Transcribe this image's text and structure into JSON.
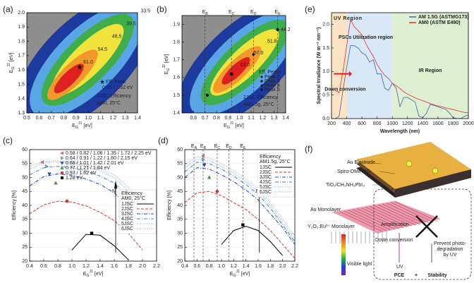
{
  "chart_data": [
    {
      "type": "contour",
      "panel": "(a)",
      "xlabel": {
        "base": "E",
        "sub": "G",
        "sup": "J1",
        "unit": " [eV]"
      },
      "ylabel": {
        "base": "E",
        "sub": "G",
        "sup": "J2",
        "unit": " [eV]"
      },
      "xlim": [
        0.5,
        1.4
      ],
      "xticks": [
        0.5,
        0.6,
        0.7,
        0.8,
        0.9,
        {
          "value": 1,
          "label": "1.0"
        },
        1.1,
        1.2,
        1.3,
        1.4
      ],
      "ylim": [
        1.3,
        2.0
      ],
      "yticks": [
        1.3,
        1.4,
        1.5,
        1.6,
        1.7,
        1.8,
        1.9,
        {
          "value": 2,
          "label": "2.0"
        }
      ],
      "contour_labels": [
        "61.0",
        "54.5",
        "48.5",
        "39.5",
        "33.5"
      ],
      "peaks": [
        {
          "name": "Eff. Peak",
          "marker": "star",
          "x": 0.93,
          "y": 1.62
        }
      ],
      "peak_label": "0.93 / 1.62 eV",
      "annotations": [
        "2JSC Efficiency",
        "AM0, 25°C"
      ]
    },
    {
      "type": "contour",
      "panel": "(b)",
      "xlabel": {
        "base": "E",
        "sub": "G",
        "sup": "J1",
        "unit": " [eV]"
      },
      "ylabel": {
        "base": "E",
        "sub": "G",
        "sup": "J2",
        "unit": " [eV]"
      },
      "xlim": [
        0.5,
        1.4
      ],
      "xticks": [
        0.6,
        0.7,
        0.8,
        0.9,
        {
          "value": 1,
          "label": "1.0"
        },
        1.1,
        1.2,
        1.3,
        1.4
      ],
      "ylim": [
        1.4,
        1.95
      ],
      "yticks": [
        1.4,
        1.5,
        1.6,
        1.7,
        1.8,
        1.9
      ],
      "contour_labels": [
        "63.0",
        "57.0",
        "51.8",
        "44.2"
      ],
      "vlines": [
        {
          "label": {
            "base": "E",
            "sub": "B"
          },
          "x": 0.7
        },
        {
          "label": {
            "base": "E",
            "sub": "C"
          },
          "x": 0.93
        },
        {
          "label": {
            "base": "E",
            "sub": "D"
          },
          "x": 1.12
        },
        {
          "label": {
            "base": "E",
            "sub": "E"
          },
          "x": 1.33
        }
      ],
      "legend_title": "Eff. Peaks",
      "peaks": [
        {
          "name": "Peak 2",
          "marker": "circle",
          "x": 0.72,
          "y": 1.5
        },
        {
          "name": "Peak 3",
          "marker": "square",
          "x": 0.93,
          "y": 1.62
        },
        {
          "name": "Peak 4",
          "marker": "diamond",
          "x": 1.12,
          "y": 1.73
        },
        {
          "name": "Peak 5",
          "marker": "circle",
          "x": 1.33,
          "y": 1.87
        }
      ],
      "annotations": [
        "2JSC Efficiency",
        "AM1.5g, 25°C"
      ]
    },
    {
      "type": "line",
      "panel": "(c)",
      "xlabel": {
        "base": "E",
        "sub": "G",
        "sup": "J1",
        "unit": " [eV]"
      },
      "ylabel": "Efficiency [%]",
      "xlim": [
        0.4,
        2.2
      ],
      "xticks": [
        0.4,
        0.6,
        0.8,
        {
          "value": 1,
          "label": "1.0"
        },
        1.2,
        1.4,
        1.6,
        1.8,
        {
          "value": 2,
          "label": "2.0"
        },
        2.2
      ],
      "ylim": [
        20,
        60
      ],
      "yticks": [
        20,
        25,
        30,
        35,
        40,
        45,
        50,
        55,
        60
      ],
      "x": [
        0.4,
        0.6,
        0.8,
        1.0,
        1.2,
        1.4,
        1.6,
        1.8,
        2.0,
        2.2
      ],
      "series": [
        {
          "name": "1JSC",
          "color": "#000000",
          "linestyle": "solid",
          "values": [
            null,
            null,
            null,
            24,
            29.6,
            29.3,
            25.5,
            20.5,
            null,
            null
          ]
        },
        {
          "name": "2JSC",
          "color": "#e03030",
          "linestyle": "dashed",
          "values": [
            37,
            40.2,
            41.5,
            41.2,
            39.8,
            37.5,
            34.5,
            30,
            24,
            null
          ]
        },
        {
          "name": "3JSC",
          "color": "#2040c0",
          "linestyle": "dashdot",
          "values": [
            47,
            50.3,
            51.3,
            50.8,
            49.5,
            47.5,
            44.5,
            39.5,
            33,
            null
          ]
        },
        {
          "name": "4JSC",
          "color": "#4a7fb8",
          "linestyle": "dashdot",
          "values": [
            51,
            53.5,
            54,
            53.5,
            52.3,
            50.5,
            48,
            43,
            36,
            null
          ]
        },
        {
          "name": "5JSC",
          "color": "#7aaee0",
          "linestyle": "dotted",
          "values": [
            53,
            55.3,
            55.6,
            55.2,
            54,
            52.3,
            50,
            45,
            38,
            null
          ]
        },
        {
          "name": "6JSC",
          "color": "#a0a0c0",
          "linestyle": "dotted",
          "values": [
            54,
            55.8,
            56,
            55.7,
            54.8,
            53,
            51,
            46.5,
            39.5,
            null
          ]
        }
      ],
      "legend_title": "Efficiency",
      "legend_subtitle": "AM0, 25°C",
      "peaks": [
        {
          "label": "0.58 / 0.82 / 1.06 / 1.35 / 1.72 / 2.25 eV",
          "color": "#e86a9a",
          "marker": "triangle-left",
          "x": 0.58,
          "y": 55.5
        },
        {
          "label": "0.64 / 0.91 / 1.22 / 1.60 / 2.15 eV",
          "color": "#60b0e0",
          "marker": "triangle-right",
          "x": 0.64,
          "y": 54
        },
        {
          "label": "0.68 / 1.01 / 1.42 / 2.01 eV",
          "color": "#2040c0",
          "marker": "triangle-down",
          "x": 0.68,
          "y": 51.3
        },
        {
          "label": "0.77 / 1.21 / 1.84 eV",
          "color": "#40a040",
          "marker": "triangle-up",
          "x": 0.77,
          "y": 48
        },
        {
          "label": "0.93 / 1.62 eV",
          "color": "#e03030",
          "marker": "circle",
          "x": 0.93,
          "y": 41.5
        },
        {
          "label": "1.28 eV",
          "color": "#000000",
          "marker": "square",
          "x": 1.28,
          "y": 30
        }
      ],
      "annotation": "N"
    },
    {
      "type": "line",
      "panel": "(d)",
      "xlabel": {
        "base": "E",
        "sub": "G",
        "sup": "J1",
        "unit": " [eV]"
      },
      "ylabel": "Efficiency [%]",
      "xlim": [
        0.4,
        2.2
      ],
      "xticks": [
        0.4,
        0.6,
        0.8,
        {
          "value": 1,
          "label": "1.0"
        },
        1.2,
        1.4,
        1.6,
        1.8,
        {
          "value": 2,
          "label": "2.0"
        },
        2.2
      ],
      "ylim": [
        20,
        60
      ],
      "yticks": [
        20,
        25,
        30,
        35,
        40,
        45,
        50,
        55,
        60
      ],
      "x": [
        0.4,
        0.6,
        0.8,
        1.0,
        1.2,
        1.4,
        1.6,
        1.8,
        2.0,
        2.2
      ],
      "series": [
        {
          "name": "1JSC",
          "color": "#000000",
          "linestyle": "solid",
          "values": [
            null,
            null,
            null,
            26,
            31,
            32.5,
            31,
            27,
            22,
            null
          ]
        },
        {
          "name": "2JSC",
          "color": "#e03030",
          "linestyle": "dashed",
          "values": [
            41,
            44.5,
            45,
            43.5,
            41,
            38.5,
            35,
            31,
            26,
            21
          ]
        },
        {
          "name": "3JSC",
          "color": "#2040c0",
          "linestyle": "dashdot",
          "values": [
            50,
            53.5,
            53,
            51,
            48.5,
            45.5,
            42,
            37,
            32,
            26
          ]
        },
        {
          "name": "4JSC",
          "color": "#4a7fb8",
          "linestyle": "dashdot",
          "values": [
            52,
            55.5,
            55,
            53,
            50.5,
            47.5,
            44,
            39,
            33,
            27
          ]
        },
        {
          "name": "5JSC",
          "color": "#7aaee0",
          "linestyle": "dotted",
          "values": [
            53.5,
            56.5,
            56,
            54,
            51.5,
            48.5,
            45,
            40,
            34,
            28
          ]
        },
        {
          "name": "6JSC",
          "color": "#a0a0c0",
          "linestyle": "dotted",
          "values": [
            54.5,
            57.5,
            57,
            55,
            52.5,
            49.5,
            46,
            41,
            35,
            29
          ]
        }
      ],
      "legend_title": "Efficiency",
      "legend_subtitle": "AM1.5g, 25°C",
      "vlines": [
        {
          "label": {
            "base": "E",
            "sub": "A"
          },
          "x": 0.55
        },
        {
          "label": {
            "base": "E",
            "sub": "B"
          },
          "x": 0.7
        },
        {
          "label": {
            "base": "E",
            "sub": "C"
          },
          "x": 0.93
        },
        {
          "label": {
            "base": "E",
            "sub": "D"
          },
          "x": 1.12
        },
        {
          "label": {
            "base": "E",
            "sub": "E"
          },
          "x": 1.35
        }
      ],
      "peaks": [
        {
          "color": "#e86a9a",
          "marker": "triangle-left",
          "x": 0.7,
          "y": 57.8
        },
        {
          "color": "#60b0e0",
          "marker": "triangle-right",
          "x": 0.7,
          "y": 56.5
        },
        {
          "color": "#2040c0",
          "marker": "triangle-down",
          "x": 0.72,
          "y": 54.5
        },
        {
          "color": "#40a040",
          "marker": "triangle-up",
          "x": 0.8,
          "y": 50
        },
        {
          "color": "#e03030",
          "marker": "circle",
          "x": 0.93,
          "y": 45
        },
        {
          "color": "#000000",
          "marker": "square",
          "x": 1.35,
          "y": 33
        }
      ],
      "annotation": "N"
    },
    {
      "type": "line",
      "panel": "(e)",
      "xlabel": "Wavelength (nm)",
      "ylabel": "Spectral Irradiance (W m⁻² nm⁻¹)",
      "xlim": [
        200,
        2000
      ],
      "xticks": [
        200,
        400,
        600,
        800,
        1000,
        1200,
        1400,
        1600,
        1800,
        2000
      ],
      "ylim": [
        0,
        2.25
      ],
      "yticks": [
        {
          "value": 0,
          "label": "0.0"
        },
        0.5,
        {
          "value": 1,
          "label": "1.0"
        },
        1.5,
        {
          "value": 2,
          "label": "2.0"
        }
      ],
      "x": [
        250,
        300,
        350,
        400,
        450,
        500,
        550,
        600,
        650,
        700,
        750,
        800,
        850,
        900,
        950,
        1000,
        1050,
        1100,
        1150,
        1200,
        1250,
        1300,
        1350,
        1400,
        1450,
        1500,
        1550,
        1600,
        1650,
        1700,
        1750,
        1800,
        1850,
        1900,
        1950,
        2000
      ],
      "series": [
        {
          "name": "AM 1.5G (ASTMG173)",
          "color": "#3a5fb0",
          "linestyle": "solid",
          "values": [
            0,
            0.05,
            0.6,
            1.1,
            1.55,
            1.55,
            1.5,
            1.4,
            1.35,
            1.2,
            1.25,
            0.95,
            0.95,
            0.65,
            0.6,
            0.75,
            0.65,
            0.25,
            0.45,
            0.45,
            0.4,
            0.35,
            0.05,
            0.02,
            0.12,
            0.3,
            0.28,
            0.25,
            0.22,
            0.2,
            0.12,
            0.02,
            0.0,
            0.0,
            0.05,
            0.08
          ]
        },
        {
          "name": "AM0 (ASTM E490)",
          "color": "#e03030",
          "linestyle": "solid",
          "values": [
            0.6,
            0.55,
            1.0,
            1.55,
            2.1,
            1.95,
            1.87,
            1.78,
            1.6,
            1.45,
            1.32,
            1.15,
            1.02,
            0.92,
            0.85,
            0.75,
            0.7,
            0.64,
            0.57,
            0.52,
            0.48,
            0.44,
            0.41,
            0.38,
            0.35,
            0.32,
            0.29,
            0.27,
            0.25,
            0.23,
            0.21,
            0.19,
            0.17,
            0.15,
            0.13,
            0.12
          ]
        }
      ],
      "regions": [
        {
          "label": "UV Region",
          "x0": 200,
          "x1": 400,
          "color": "#fbe3c4",
          "text_color": "#e0902a"
        },
        {
          "label": "PSCs Utilization region",
          "x0": 400,
          "x1": 1000,
          "color": "#d8e8f6",
          "text_color": "#333333"
        },
        {
          "label": "IR Region",
          "x0": 1000,
          "x1": 2000,
          "color": "#deefd2",
          "text_color": "#333333"
        }
      ],
      "annotation": "Down conversion"
    }
  ],
  "diagram": {
    "panel": "(f)",
    "layers": [
      "Au Electrode",
      "Spiro-OMeTAD",
      "TiO₂/CH₃NH₃PbI₃",
      "Au Monolayer",
      "Y₂O₂:Eu³⁺ Monolayer"
    ],
    "light": "Visible light",
    "uv": "UV",
    "amplification": "Amplification",
    "down": "Down conversion",
    "prevent": [
      "Prevent photo-",
      "degradation",
      "by UV"
    ],
    "bottom": [
      "PCE",
      "+",
      "Stability"
    ]
  }
}
